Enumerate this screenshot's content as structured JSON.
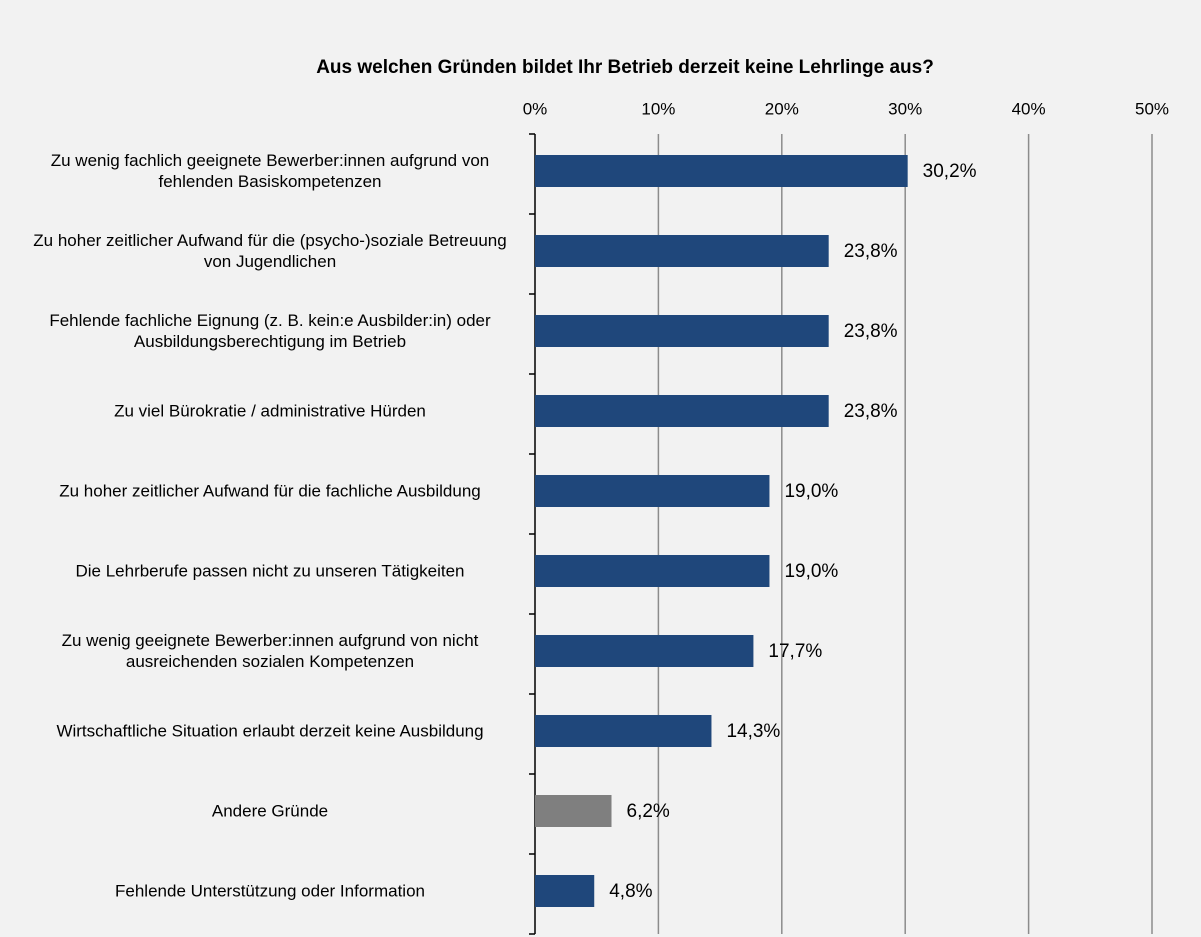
{
  "chart_data": {
    "type": "barh",
    "title": "Aus welchen Gründen bildet Ihr Betrieb derzeit keine Lehrlinge aus?",
    "categories": [
      "Zu wenig fachlich geeignete Bewerber:innen aufgrund von fehlenden Basiskompetenzen",
      "Zu hoher zeitlicher Aufwand für die (psycho-)soziale Betreuung von Jugendlichen",
      "Fehlende fachliche Eignung (z. B. kein:e Ausbilder:in) oder Ausbildungsberechtigung im Betrieb",
      "Zu viel Bürokratie / administrative Hürden",
      "Zu hoher zeitlicher Aufwand für die fachliche Ausbildung",
      "Die Lehrberufe passen nicht zu unseren Tätigkeiten",
      "Zu wenig geeignete Bewerber:innen aufgrund von nicht ausreichenden sozialen Kompetenzen",
      "Wirtschaftliche Situation erlaubt derzeit keine Ausbildung",
      "Andere Gründe",
      "Fehlende Unterstützung oder Information"
    ],
    "values": [
      30.2,
      23.8,
      23.8,
      23.8,
      19.0,
      19.0,
      17.7,
      14.3,
      6.2,
      4.8
    ],
    "value_labels": [
      "30,2%",
      "23,8%",
      "23,8%",
      "23,8%",
      "19,0%",
      "19,0%",
      "17,7%",
      "14,3%",
      "6,2%",
      "4,8%"
    ],
    "colors": [
      "#1f477b",
      "#1f477b",
      "#1f477b",
      "#1f477b",
      "#1f477b",
      "#1f477b",
      "#1f477b",
      "#1f477b",
      "#7f7f7f",
      "#1f477b"
    ],
    "xlim": [
      0,
      50
    ],
    "xticks": [
      {
        "value": 0,
        "label": "0%"
      },
      {
        "value": 10,
        "label": "10%"
      },
      {
        "value": 20,
        "label": "20%"
      },
      {
        "value": 30,
        "label": "30%"
      },
      {
        "value": 40,
        "label": "40%"
      },
      {
        "value": 50,
        "label": "50%"
      }
    ],
    "grid": true
  }
}
